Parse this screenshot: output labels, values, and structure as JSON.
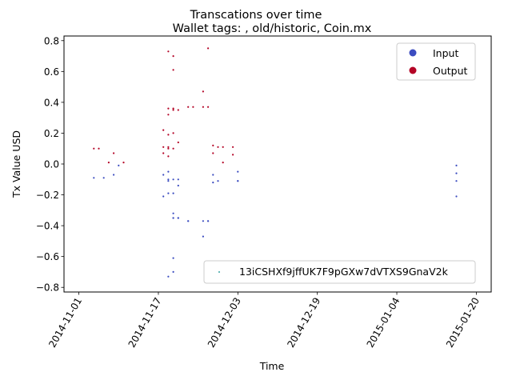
{
  "chart_data": {
    "type": "scatter",
    "title": "Transcations over time",
    "subtitle": "Wallet tags: , old/historic, Coin.mx",
    "xlabel": "Time",
    "ylabel": "Tx Value USD",
    "x_is_date": true,
    "xlim": [
      "2014-10-29",
      "2015-01-23"
    ],
    "ylim": [
      -0.83,
      0.83
    ],
    "x_ticks": [
      "2014-11-01",
      "2014-11-17",
      "2014-12-03",
      "2014-12-19",
      "2015-01-04",
      "2015-01-20"
    ],
    "y_ticks": [
      -0.8,
      -0.6,
      -0.4,
      -0.2,
      0.0,
      0.2,
      0.4,
      0.6,
      0.8
    ],
    "y_tick_labels": [
      "−0.8",
      "−0.6",
      "−0.4",
      "−0.2",
      "0.0",
      "0.2",
      "0.4",
      "0.6",
      "0.8"
    ],
    "grid": false,
    "legend_placement": "top-right",
    "legend2_placement": "bottom-right",
    "colors": {
      "input": "#3b4cc0",
      "output": "#b40426",
      "address": "#3aa3a3"
    },
    "legend": [
      {
        "label": "Input",
        "color": "#3b4cc0"
      },
      {
        "label": "Output",
        "color": "#b40426"
      }
    ],
    "address_legend": {
      "label": "13iCSHXf9jffUK7F9pGXw7dVTXS9GnaV2k",
      "color": "#3aa3a3"
    },
    "series": [
      {
        "name": "Input",
        "color": "#3b4cc0",
        "points": [
          [
            "2014-11-04",
            -0.09
          ],
          [
            "2014-11-06",
            -0.09
          ],
          [
            "2014-11-08",
            -0.07
          ],
          [
            "2014-11-09",
            -0.01
          ],
          [
            "2014-11-18",
            -0.21
          ],
          [
            "2014-11-18",
            -0.07
          ],
          [
            "2014-11-19",
            -0.11
          ],
          [
            "2014-11-19",
            -0.1
          ],
          [
            "2014-11-19",
            -0.05
          ],
          [
            "2014-11-19",
            -0.73
          ],
          [
            "2014-11-19",
            -0.19
          ],
          [
            "2014-11-20",
            -0.19
          ],
          [
            "2014-11-20",
            -0.1
          ],
          [
            "2014-11-20",
            -0.35
          ],
          [
            "2014-11-20",
            -0.32
          ],
          [
            "2014-11-20",
            -0.35
          ],
          [
            "2014-11-20",
            -0.7
          ],
          [
            "2014-11-20",
            -0.61
          ],
          [
            "2014-11-21",
            -0.35
          ],
          [
            "2014-11-21",
            -0.35
          ],
          [
            "2014-11-21",
            -0.1
          ],
          [
            "2014-11-21",
            -0.14
          ],
          [
            "2014-11-23",
            -0.37
          ],
          [
            "2014-11-23",
            -0.37
          ],
          [
            "2014-11-26",
            -0.37
          ],
          [
            "2014-11-26",
            -0.47
          ],
          [
            "2014-11-27",
            -0.37
          ],
          [
            "2014-11-27",
            -0.37
          ],
          [
            "2014-11-28",
            -0.07
          ],
          [
            "2014-11-28",
            -0.12
          ],
          [
            "2014-11-29",
            -0.11
          ],
          [
            "2014-12-03",
            -0.05
          ],
          [
            "2014-12-03",
            -0.11
          ],
          [
            "2014-12-03",
            -0.11
          ],
          [
            "2015-01-16",
            -0.01
          ],
          [
            "2015-01-16",
            -0.06
          ],
          [
            "2015-01-16",
            -0.11
          ],
          [
            "2015-01-16",
            -0.21
          ]
        ]
      },
      {
        "name": "Output",
        "color": "#b40426",
        "points": [
          [
            "2014-11-04",
            0.1
          ],
          [
            "2014-11-05",
            0.1
          ],
          [
            "2014-11-07",
            0.01
          ],
          [
            "2014-11-08",
            0.07
          ],
          [
            "2014-11-10",
            0.01
          ],
          [
            "2014-11-18",
            0.22
          ],
          [
            "2014-11-18",
            0.07
          ],
          [
            "2014-11-18",
            0.11
          ],
          [
            "2014-11-19",
            0.73
          ],
          [
            "2014-11-19",
            0.05
          ],
          [
            "2014-11-19",
            0.19
          ],
          [
            "2014-11-19",
            0.11
          ],
          [
            "2014-11-19",
            0.1
          ],
          [
            "2014-11-19",
            0.36
          ],
          [
            "2014-11-19",
            0.32
          ],
          [
            "2014-11-20",
            0.36
          ],
          [
            "2014-11-20",
            0.2
          ],
          [
            "2014-11-20",
            0.1
          ],
          [
            "2014-11-20",
            0.7
          ],
          [
            "2014-11-20",
            0.61
          ],
          [
            "2014-11-20",
            0.35
          ],
          [
            "2014-11-21",
            0.35
          ],
          [
            "2014-11-21",
            0.14
          ],
          [
            "2014-11-23",
            0.37
          ],
          [
            "2014-11-24",
            0.37
          ],
          [
            "2014-11-26",
            0.47
          ],
          [
            "2014-11-26",
            0.37
          ],
          [
            "2014-11-27",
            0.37
          ],
          [
            "2014-11-27",
            0.75
          ],
          [
            "2014-11-28",
            0.12
          ],
          [
            "2014-11-28",
            0.07
          ],
          [
            "2014-11-29",
            0.11
          ],
          [
            "2014-11-30",
            0.01
          ],
          [
            "2014-11-30",
            0.11
          ],
          [
            "2014-12-02",
            0.11
          ],
          [
            "2014-12-02",
            0.06
          ]
        ]
      }
    ]
  }
}
